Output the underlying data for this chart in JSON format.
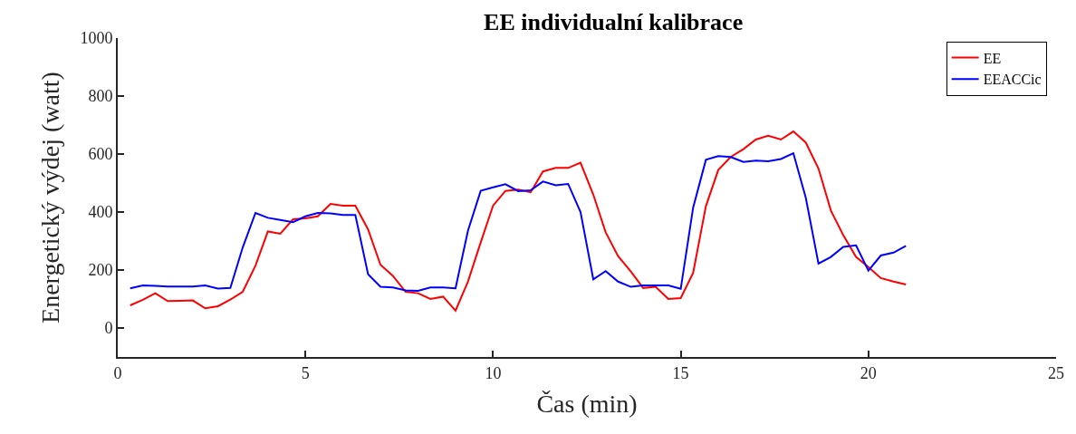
{
  "chart_data": {
    "type": "line",
    "title": "EE individualní kalibrace",
    "xlabel": "Čas (min)",
    "ylabel": "Energetický výdej (watt)",
    "x": [
      0.33,
      0.67,
      1.0,
      1.33,
      1.67,
      2.0,
      2.33,
      2.67,
      3.0,
      3.33,
      3.67,
      4.0,
      4.33,
      4.67,
      5.0,
      5.33,
      5.67,
      6.0,
      6.33,
      6.67,
      7.0,
      7.33,
      7.67,
      8.0,
      8.33,
      8.67,
      9.0,
      9.33,
      9.67,
      10.0,
      10.33,
      10.67,
      11.0,
      11.33,
      11.67,
      12.0,
      12.33,
      12.67,
      13.0,
      13.33,
      13.67,
      14.0,
      14.33,
      14.67,
      15.0,
      15.33,
      15.67,
      16.0,
      16.33,
      16.67,
      17.0,
      17.33,
      17.67,
      18.0,
      18.33,
      18.67,
      19.0,
      19.33,
      19.67,
      20.0,
      20.33,
      20.67,
      21.0
    ],
    "series": [
      {
        "name": "EE",
        "color": "#ff0000",
        "values": [
          78,
          97,
          120,
          93,
          94,
          95,
          68,
          75,
          98,
          125,
          215,
          333,
          325,
          375,
          378,
          385,
          428,
          422,
          422,
          340,
          218,
          180,
          125,
          120,
          100,
          108,
          60,
          160,
          295,
          422,
          473,
          477,
          468,
          540,
          552,
          552,
          570,
          460,
          330,
          248,
          195,
          138,
          142,
          100,
          103,
          190,
          420,
          545,
          590,
          617,
          650,
          663,
          650,
          678,
          640,
          550,
          405,
          320,
          245,
          210,
          172,
          160,
          150
        ]
      },
      {
        "name": "EEACCic",
        "color": "#0000ff",
        "values": [
          137,
          147,
          145,
          143,
          143,
          143,
          147,
          136,
          138,
          278,
          397,
          380,
          373,
          365,
          385,
          397,
          395,
          390,
          390,
          185,
          142,
          140,
          130,
          128,
          140,
          140,
          137,
          335,
          473,
          485,
          496,
          472,
          475,
          505,
          492,
          497,
          400,
          168,
          196,
          160,
          142,
          147,
          147,
          147,
          135,
          415,
          580,
          593,
          590,
          573,
          577,
          575,
          583,
          603,
          450,
          222,
          245,
          280,
          285,
          198,
          250,
          260,
          283
        ]
      }
    ],
    "xlim": [
      0,
      25
    ],
    "xticks": [
      0,
      5,
      10,
      15,
      20,
      25
    ],
    "ylim": [
      -100,
      1000
    ],
    "yticks": [
      0,
      200,
      400,
      600,
      800,
      1000
    ],
    "legend": "top right",
    "line_style": "solid",
    "marker": "none"
  }
}
